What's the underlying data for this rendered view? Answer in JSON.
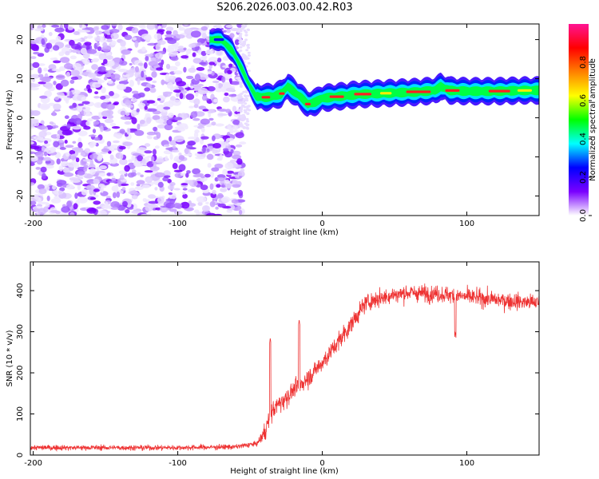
{
  "title": "S206.2026.003.00.42.R03",
  "chart_data": [
    {
      "type": "heatmap",
      "xlabel": "Height of straight line (km)",
      "ylabel": "Frequency (Hz)",
      "xlim": [
        -202,
        150
      ],
      "ylim": [
        -25,
        24
      ],
      "x_ticks": [
        "-200",
        "-100",
        "0",
        "100"
      ],
      "y_ticks": [
        "-20",
        "-10",
        "0",
        "10",
        "20"
      ],
      "colorbar": {
        "label": "Normalized spectral amplitude",
        "range": [
          0,
          1
        ],
        "ticks": [
          "0.0",
          "0.2",
          "0.4",
          "0.6",
          "0.8"
        ],
        "colors": [
          "#ffffff",
          "#7a00ff",
          "#0000ff",
          "#00ffff",
          "#00ff00",
          "#ffff00",
          "#ff8000",
          "#ff0000",
          "#ff1493"
        ]
      },
      "noise_region_x": [
        -202,
        -55
      ],
      "signal_track": [
        {
          "x": -78,
          "y": 20
        },
        {
          "x": -70,
          "y": 20
        },
        {
          "x": -62,
          "y": 17
        },
        {
          "x": -55,
          "y": 12
        },
        {
          "x": -50,
          "y": 8
        },
        {
          "x": -46,
          "y": 5.5
        },
        {
          "x": -40,
          "y": 5.2
        },
        {
          "x": -34,
          "y": 5.5
        },
        {
          "x": -28,
          "y": 6.2
        },
        {
          "x": -24,
          "y": 8
        },
        {
          "x": -19,
          "y": 6.5
        },
        {
          "x": -14,
          "y": 5
        },
        {
          "x": -10,
          "y": 3.5
        },
        {
          "x": -5,
          "y": 4
        },
        {
          "x": 0,
          "y": 5
        },
        {
          "x": 10,
          "y": 5.4
        },
        {
          "x": 25,
          "y": 6
        },
        {
          "x": 45,
          "y": 6.3
        },
        {
          "x": 65,
          "y": 6.6
        },
        {
          "x": 78,
          "y": 7
        },
        {
          "x": 82,
          "y": 8
        },
        {
          "x": 88,
          "y": 7
        },
        {
          "x": 100,
          "y": 6.8
        },
        {
          "x": 120,
          "y": 6.8
        },
        {
          "x": 140,
          "y": 7
        },
        {
          "x": 150,
          "y": 7
        }
      ]
    },
    {
      "type": "line",
      "xlabel": "Height of straight line (km)",
      "ylabel": "SNR (10 * v/v)",
      "xlim": [
        -202,
        150
      ],
      "ylim": [
        0,
        470
      ],
      "x_ticks": [
        "-200",
        "-100",
        "0",
        "100"
      ],
      "y_ticks": [
        "0",
        "100",
        "200",
        "300",
        "400"
      ],
      "series_color": "#ee3333",
      "series": [
        {
          "x": [
            -202,
            -150,
            -100,
            -60,
            -45,
            -40,
            -35,
            -30,
            -25,
            -20,
            -15,
            -10,
            -5,
            0,
            5,
            10,
            15,
            20,
            25,
            30,
            40,
            50,
            60,
            80,
            100,
            120,
            140,
            150
          ],
          "values": [
            18,
            18,
            18,
            20,
            28,
            55,
            105,
            125,
            140,
            158,
            172,
            188,
            205,
            225,
            248,
            270,
            295,
            318,
            345,
            370,
            382,
            390,
            395,
            392,
            385,
            378,
            372,
            370
          ],
          "spikes": [
            {
              "x": -36,
              "y": 285
            },
            {
              "x": -16,
              "y": 330
            },
            {
              "x": 92,
              "y": 300
            }
          ]
        }
      ]
    }
  ]
}
